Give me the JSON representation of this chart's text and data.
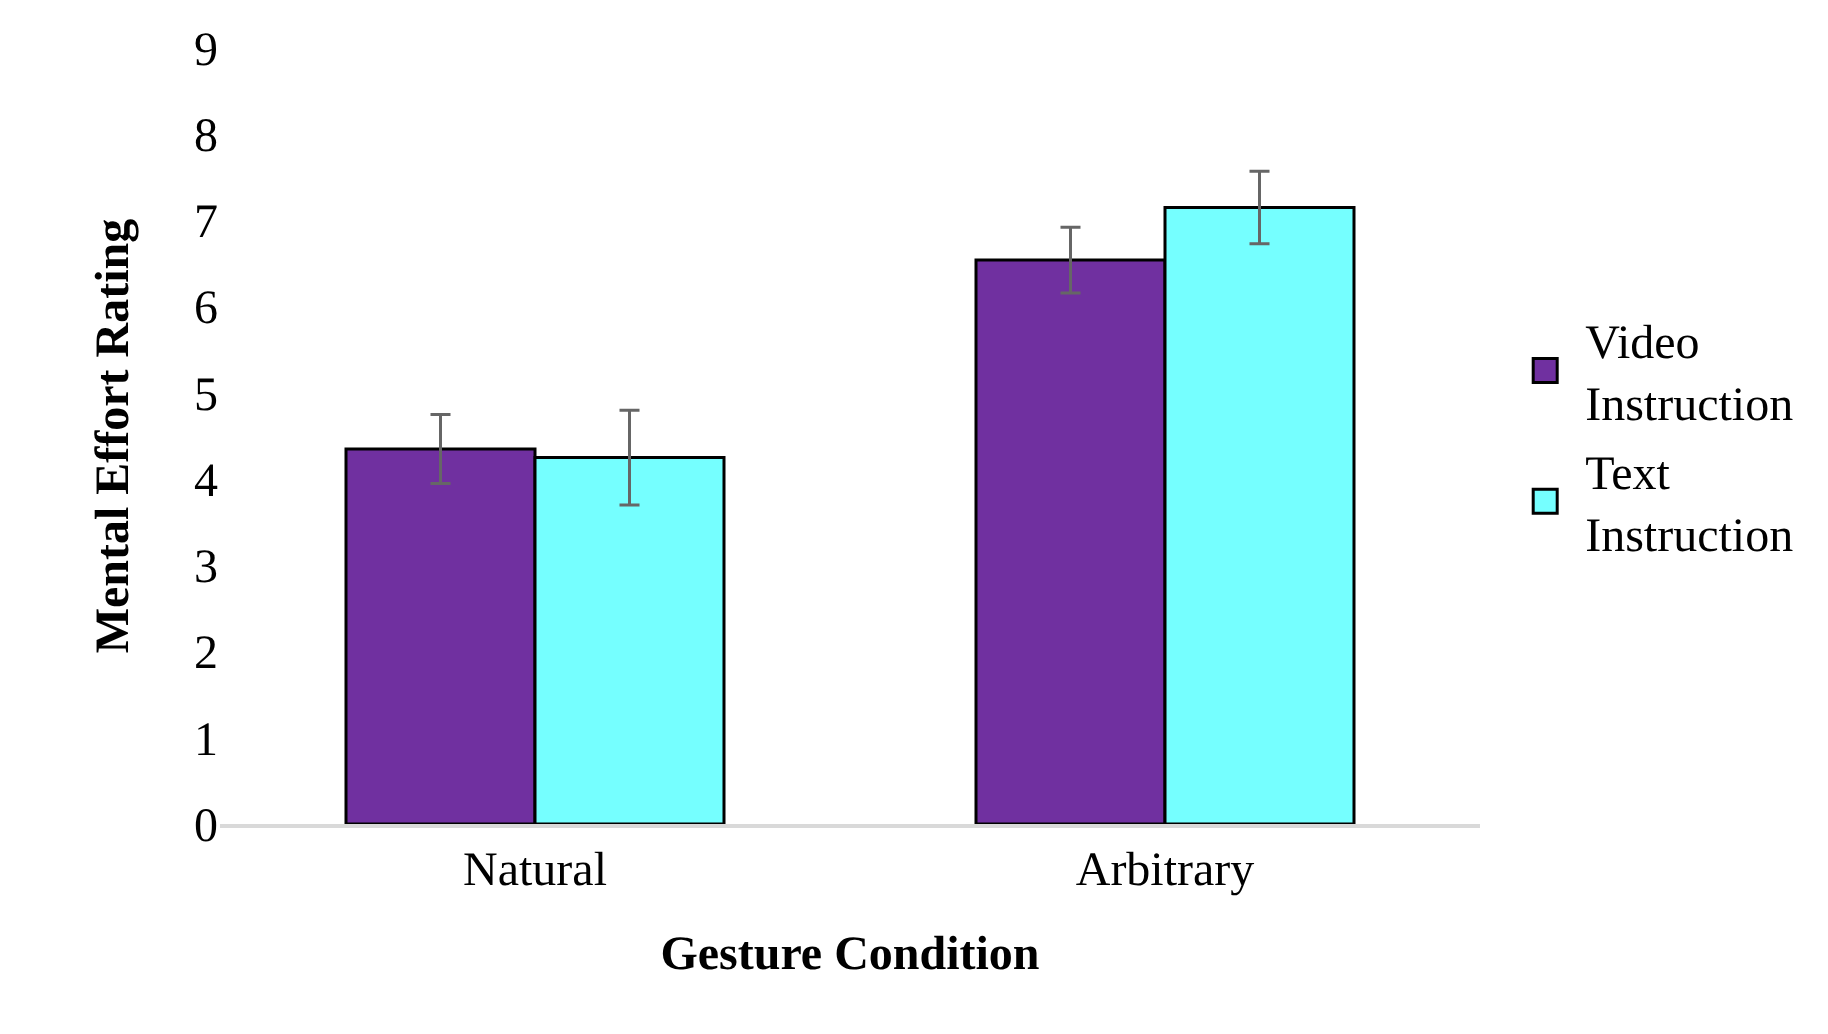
{
  "chart_data": {
    "type": "bar",
    "xlabel": "Gesture Condition",
    "ylabel": "Mental Effort Rating",
    "categories": [
      "Natural",
      "Arbitrary"
    ],
    "series": [
      {
        "name": "Video Instruction",
        "color": "#7030a0",
        "values": [
          4.35,
          6.54
        ],
        "errors": [
          0.4,
          0.38
        ]
      },
      {
        "name": "Text Instruction",
        "color": "#75ffff",
        "values": [
          4.25,
          7.15
        ],
        "errors": [
          0.55,
          0.42
        ]
      }
    ],
    "ylim": [
      0,
      9
    ],
    "yticks": [
      0,
      1,
      2,
      3,
      4,
      5,
      6,
      7,
      8,
      9
    ],
    "legend": "right"
  }
}
